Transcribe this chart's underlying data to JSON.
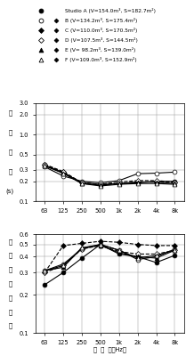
{
  "freqs": [
    63,
    125,
    250,
    500,
    1000,
    2000,
    4000,
    8000
  ],
  "freq_labels": [
    "63",
    "125",
    "250",
    "500",
    "1k",
    "2k",
    "4k",
    "8k"
  ],
  "rt_data": {
    "A": [
      0.35,
      0.27,
      0.19,
      0.18,
      0.185,
      0.19,
      0.2,
      0.2
    ],
    "B": [
      0.33,
      0.24,
      0.2,
      0.19,
      0.205,
      0.26,
      0.265,
      0.275
    ],
    "C": [
      0.36,
      0.28,
      0.19,
      0.175,
      0.185,
      0.195,
      0.195,
      0.19
    ],
    "D": [
      0.355,
      0.275,
      0.19,
      0.18,
      0.195,
      0.205,
      0.205,
      0.195
    ],
    "E": [
      0.345,
      0.265,
      0.185,
      0.175,
      0.185,
      0.195,
      0.195,
      0.185
    ],
    "F": [
      0.34,
      0.265,
      0.185,
      0.17,
      0.18,
      0.185,
      0.185,
      0.18
    ]
  },
  "alpha_data": {
    "A": [
      0.24,
      0.3,
      0.39,
      0.5,
      0.42,
      0.4,
      0.36,
      0.41
    ],
    "B": [
      0.31,
      0.35,
      0.46,
      0.5,
      0.45,
      0.38,
      0.4,
      0.46
    ],
    "C": [
      0.3,
      0.49,
      0.51,
      0.53,
      0.52,
      0.5,
      0.49,
      0.49
    ],
    "D": [
      0.3,
      0.34,
      0.46,
      0.49,
      0.44,
      0.42,
      0.42,
      0.45
    ],
    "E": [
      0.31,
      0.33,
      0.47,
      0.49,
      0.43,
      0.4,
      0.39,
      0.45
    ],
    "F": [
      0.31,
      0.34,
      0.47,
      0.5,
      0.45,
      0.39,
      0.41,
      0.45
    ]
  },
  "styles": {
    "A": {
      "marker": "o",
      "markersize": 3.5,
      "markerfacecolor": "#000000",
      "linestyle": "-",
      "linewidth": 0.8
    },
    "B": {
      "marker": "o",
      "markersize": 3.5,
      "markerfacecolor": "#ffffff",
      "linestyle": "-",
      "linewidth": 0.8
    },
    "C": {
      "marker": "D",
      "markersize": 3.0,
      "markerfacecolor": "#000000",
      "linestyle": "--",
      "linewidth": 0.8
    },
    "D": {
      "marker": "D",
      "markersize": 3.0,
      "markerfacecolor": "#ffffff",
      "linestyle": "--",
      "linewidth": 0.8
    },
    "E": {
      "marker": "^",
      "markersize": 3.5,
      "markerfacecolor": "#000000",
      "linestyle": "-",
      "linewidth": 0.8
    },
    "F": {
      "marker": "^",
      "markersize": 3.5,
      "markerfacecolor": "#ffffff",
      "linestyle": "-",
      "linewidth": 0.8
    }
  },
  "legend_rows": [
    {
      "key": "A",
      "has_diamond": false,
      "label": "Studio A (V=154.0m³, S=182.7m²)"
    },
    {
      "key": "B",
      "has_diamond": true,
      "label": "B (V=134.2m³, S=175.4m²)"
    },
    {
      "key": "C",
      "has_diamond": true,
      "label": "C (V=110.0m³, S=170.5m²)"
    },
    {
      "key": "D",
      "has_diamond": true,
      "label": "D (V=107.5m³, S=144.5m²)"
    },
    {
      "key": "E",
      "has_diamond": true,
      "label": "E (V= 98.2m³, S=139.0m²)"
    },
    {
      "key": "F",
      "has_diamond": true,
      "label": "F (V=109.0m³, S=152.9m²)"
    }
  ],
  "ylabel_rt_chars": [
    "残",
    "響",
    "時",
    "間",
    "(s)"
  ],
  "ylabel_alpha_chars": [
    "室",
    "内",
    "平",
    "均",
    "吸",
    "音",
    "率"
  ],
  "xlabel": "周  波  数（Hz）",
  "background_color": "#ffffff"
}
